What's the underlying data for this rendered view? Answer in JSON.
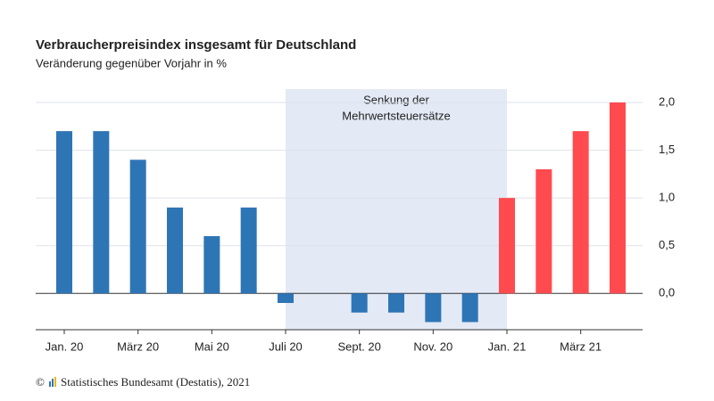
{
  "chart_data": {
    "type": "bar",
    "title": "Verbraucherpreisindex insgesamt für Deutschland",
    "subtitle": "Veränderung gegenüber Vorjahr in %",
    "categories": [
      "Jan. 20",
      null,
      "März 20",
      null,
      "Mai 20",
      null,
      "Juli 20",
      null,
      "Sept. 20",
      null,
      "Nov. 20",
      null,
      "Jan. 21",
      null,
      "März 21",
      null
    ],
    "values": [
      1.7,
      1.7,
      1.4,
      0.9,
      0.6,
      0.9,
      -0.1,
      0.0,
      -0.2,
      -0.2,
      -0.3,
      -0.3,
      1.0,
      1.3,
      1.7,
      2.0
    ],
    "colors": [
      "#2e75b6",
      "#2e75b6",
      "#2e75b6",
      "#2e75b6",
      "#2e75b6",
      "#2e75b6",
      "#2e75b6",
      "#2e75b6",
      "#2e75b6",
      "#2e75b6",
      "#2e75b6",
      "#2e75b6",
      "#ff4b4f",
      "#ff4b4f",
      "#ff4b4f",
      "#ff4b4f"
    ],
    "ylim": [
      -0.38,
      2.14
    ],
    "yticks": [
      {
        "value": 0,
        "label": "0,0"
      },
      {
        "value": 0.5,
        "label": "0,5"
      },
      {
        "value": 1,
        "label": "1,0"
      },
      {
        "value": 1.5,
        "label": "1,5"
      },
      {
        "value": 2,
        "label": "2,0"
      }
    ],
    "grid": true,
    "annotation": {
      "text": [
        "Senkung der",
        "Mehrwertsteuersätze"
      ]
    },
    "copyright": "©",
    "source": "Statistisches Bundesamt (Destatis), 2021"
  }
}
